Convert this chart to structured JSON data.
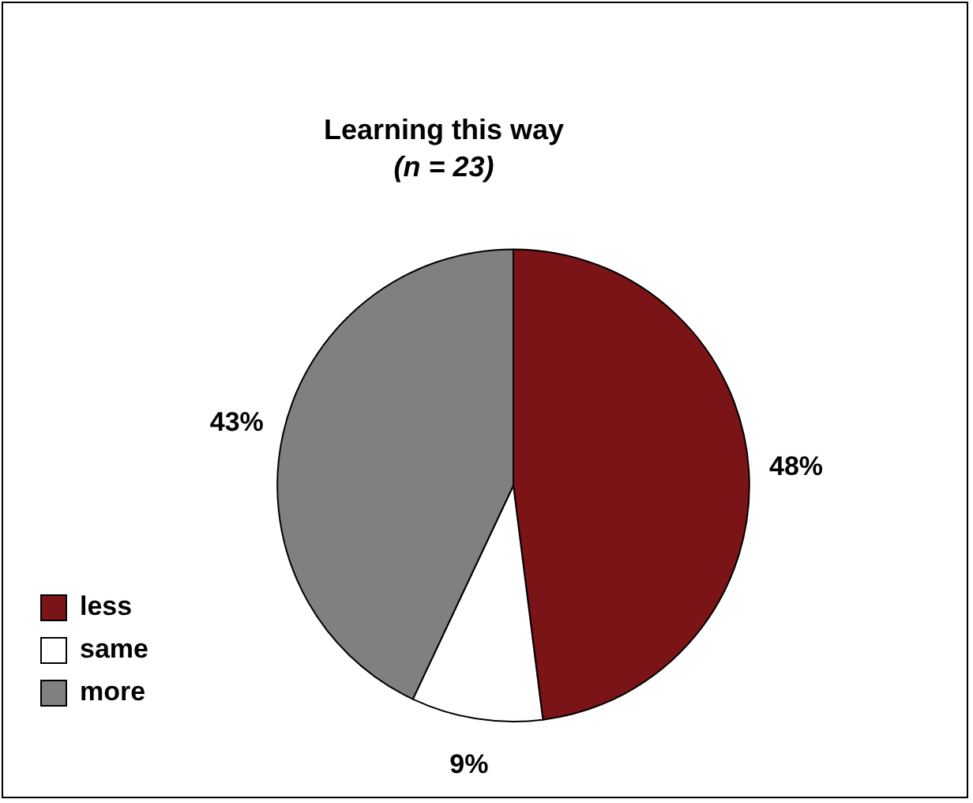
{
  "chart_data": {
    "type": "pie",
    "title": "Learning this way",
    "subtitle": "(n = 23)",
    "categories": [
      "less",
      "same",
      "more"
    ],
    "values": [
      48,
      9,
      43
    ],
    "colors": [
      "#7b1416",
      "#ffffff",
      "#808080"
    ],
    "value_labels": [
      "48%",
      "9%",
      "43%"
    ],
    "legend": "bottom left"
  }
}
